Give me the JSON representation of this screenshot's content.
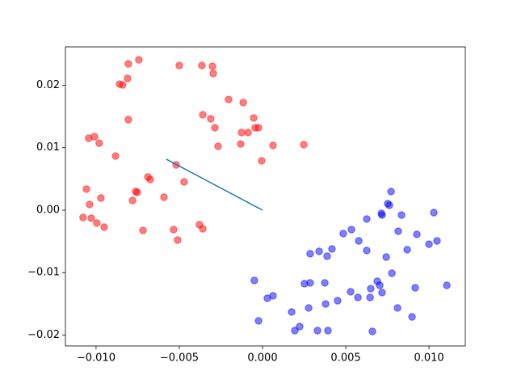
{
  "chart_data": {
    "type": "scatter",
    "xlim": [
      -0.01184,
      0.01218
    ],
    "ylim": [
      -0.02175,
      0.02615
    ],
    "xticks": [
      {
        "value": -0.01,
        "label": "−0.010"
      },
      {
        "value": -0.005,
        "label": "−0.005"
      },
      {
        "value": 0,
        "label": "0.000"
      },
      {
        "value": 0.005,
        "label": "0.005"
      },
      {
        "value": 0.01,
        "label": "0.010"
      }
    ],
    "yticks": [
      {
        "value": -0.02,
        "label": "−0.02"
      },
      {
        "value": -0.01,
        "label": "−0.01"
      },
      {
        "value": 0,
        "label": "0.00"
      },
      {
        "value": 0.01,
        "label": "0.01"
      },
      {
        "value": 0.02,
        "label": "0.02"
      }
    ],
    "alpha": 0.5,
    "series": [
      {
        "color": "red",
        "x": [
          -0.00743,
          -0.00806,
          -0.005,
          -0.00811,
          -0.00859,
          -0.0084,
          -0.00364,
          -0.00301,
          -0.00296,
          -0.00806,
          -0.00359,
          -0.00311,
          -0.00204,
          -0.00116,
          -0.00053,
          -0.00286,
          -0.00126,
          -0.00087,
          -0.00044,
          -0.00024,
          -0.00131,
          0.00063,
          -0.00267,
          0.00248,
          -5e-05,
          -0.01044,
          -0.0101,
          -0.00981,
          -0.00883,
          -0.00519,
          -0.00689,
          -0.00675,
          -0.00471,
          -0.01058,
          -0.00762,
          -0.00752,
          -0.00592,
          -0.00971,
          -0.00781,
          -0.01039,
          -0.01078,
          -0.01029,
          -0.00995,
          -0.00951,
          -0.00718,
          -0.00534,
          -0.0051,
          -0.00379,
          -0.00359
        ],
        "y": [
          0.02408,
          0.02343,
          0.02317,
          0.0211,
          0.02019,
          0.02006,
          0.02317,
          0.02304,
          0.02188,
          0.0145,
          0.01528,
          0.01463,
          0.01773,
          0.01722,
          0.01476,
          0.0132,
          0.01243,
          0.01243,
          0.0132,
          0.0132,
          0.01061,
          0.01036,
          0.01023,
          0.01049,
          0.0079,
          0.01152,
          0.01178,
          0.01074,
          0.00867,
          0.00725,
          0.00531,
          0.00492,
          0.00453,
          0.00337,
          0.00298,
          0.00285,
          0.00207,
          0.00194,
          0.00155,
          0.00091,
          -0.00117,
          -0.00129,
          -0.00207,
          -0.00272,
          -0.00324,
          -0.00311,
          -0.00479,
          -0.00233,
          -0.00298
        ]
      },
      {
        "color": "blue",
        "x": [
          -0.00049,
          -0.00024,
          0.00029,
          0.00063,
          0.00175,
          0.00194,
          0.00223,
          0.00252,
          0.00277,
          0.00286,
          0.00286,
          0.0033,
          0.0034,
          0.00374,
          0.00379,
          0.00393,
          0.00388,
          0.00417,
          0.00451,
          0.00485,
          0.00529,
          0.00534,
          0.00573,
          0.00578,
          0.00626,
          0.00626,
          0.00646,
          0.0065,
          0.0066,
          0.00689,
          0.00704,
          0.00714,
          0.00718,
          0.00718,
          0.00743,
          0.00752,
          0.00762,
          0.00772,
          0.00777,
          0.00811,
          0.00815,
          0.00835,
          0.00869,
          0.00898,
          0.00917,
          0.00927,
          0.01,
          0.01029,
          0.01048,
          0.01107
        ],
        "y": [
          -0.01126,
          -0.01773,
          -0.01411,
          -0.01372,
          -0.01631,
          -0.01929,
          -0.01864,
          -0.01178,
          -0.01566,
          -0.01165,
          -0.00699,
          -0.01929,
          -0.0066,
          -0.01165,
          -0.01502,
          -0.01929,
          -0.00738,
          -0.00621,
          -0.0145,
          -0.00375,
          -0.01307,
          -0.00311,
          -0.01398,
          -0.00492,
          -0.00142,
          -0.00647,
          -0.01398,
          -0.01256,
          -0.01942,
          -0.01139,
          -0.01204,
          -0.00052,
          -0.0132,
          -0.00078,
          -0.00751,
          0.00104,
          0.00078,
          0.00298,
          -0.0101,
          -0.01566,
          -0.00337,
          -0.00078,
          -0.00634,
          -0.01709,
          -0.01243,
          -0.00388,
          -0.00544,
          -0.00039,
          -0.00492,
          -0.01204
        ]
      }
    ],
    "lines": [
      {
        "color": "#1f77b4",
        "x": [
          -0.00578,
          0
        ],
        "y": [
          0.00816,
          0
        ]
      }
    ]
  }
}
